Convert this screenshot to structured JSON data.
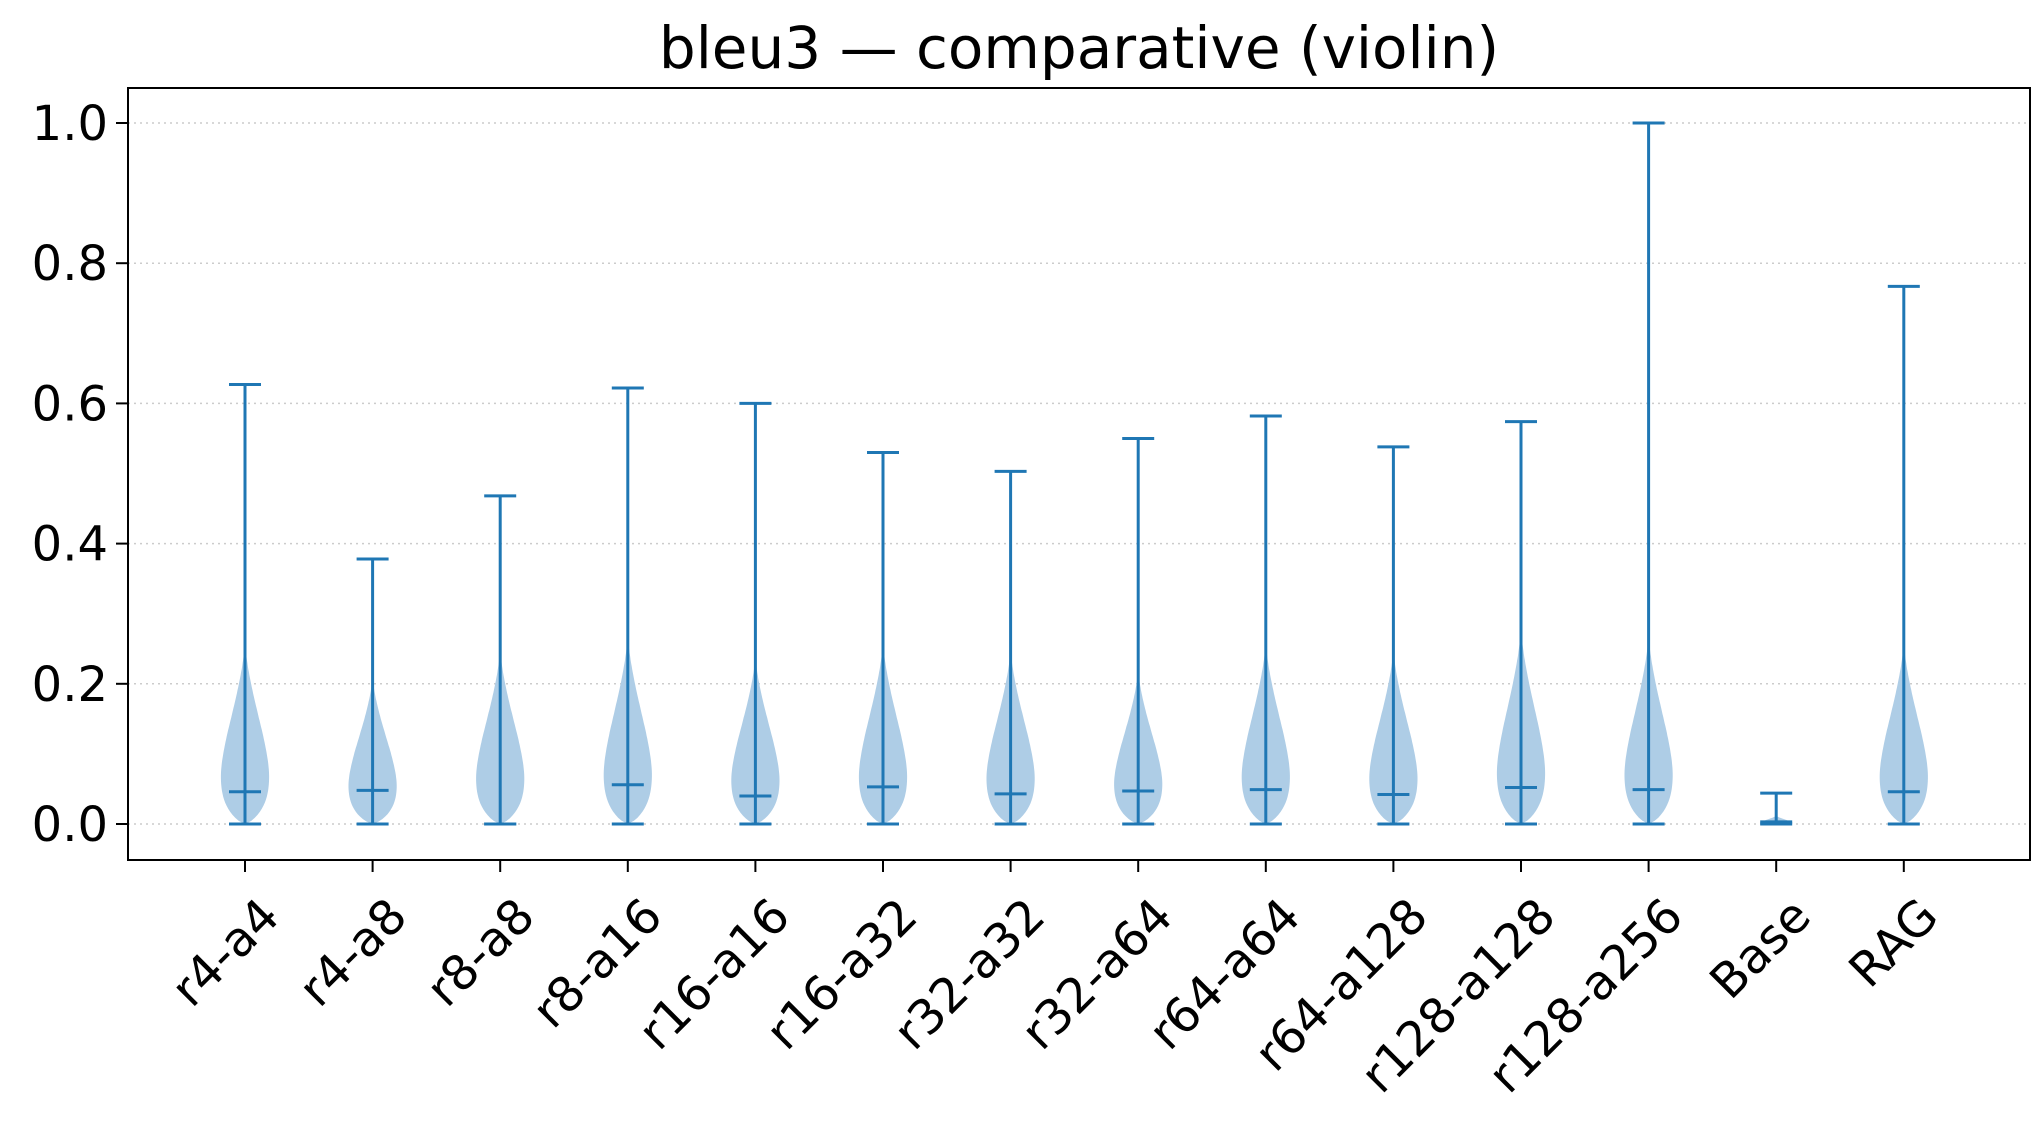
{
  "chart_data": {
    "type": "violin",
    "title": "bleu3 — comparative (violin)",
    "xlabel": "",
    "ylabel": "",
    "ylim": [
      -0.05,
      1.05
    ],
    "yticks": [
      0.0,
      0.2,
      0.4,
      0.6,
      0.8,
      1.0
    ],
    "ytick_labels": [
      "0.0",
      "0.2",
      "0.4",
      "0.6",
      "0.8",
      "1.0"
    ],
    "grid": "horizontal dotted",
    "colors": {
      "body": "#aecde6",
      "lines": "#1f77b4",
      "grid": "#cccccc"
    },
    "categories": [
      "r4-a4",
      "r4-a8",
      "r8-a8",
      "r8-a16",
      "r16-a16",
      "r16-a32",
      "r32-a32",
      "r32-a64",
      "r64-a64",
      "r64-a128",
      "r128-a128",
      "r128-a256",
      "Base",
      "RAG"
    ],
    "series": [
      {
        "category": "r4-a4",
        "min": 0.0,
        "max": 0.627,
        "median": 0.046,
        "density_top": 0.26,
        "max_halfwidth": 0.45
      },
      {
        "category": "r4-a8",
        "min": 0.0,
        "max": 0.378,
        "median": 0.048,
        "density_top": 0.21,
        "max_halfwidth": 0.45
      },
      {
        "category": "r8-a8",
        "min": 0.0,
        "max": 0.468,
        "median": 0.0,
        "density_top": 0.25,
        "max_halfwidth": 0.45
      },
      {
        "category": "r8-a16",
        "min": 0.0,
        "max": 0.622,
        "median": 0.056,
        "density_top": 0.27,
        "max_halfwidth": 0.45
      },
      {
        "category": "r16-a16",
        "min": 0.0,
        "max": 0.6,
        "median": 0.04,
        "density_top": 0.24,
        "max_halfwidth": 0.45
      },
      {
        "category": "r16-a32",
        "min": 0.0,
        "max": 0.53,
        "median": 0.053,
        "density_top": 0.26,
        "max_halfwidth": 0.45
      },
      {
        "category": "r32-a32",
        "min": 0.0,
        "max": 0.503,
        "median": 0.043,
        "density_top": 0.25,
        "max_halfwidth": 0.45
      },
      {
        "category": "r32-a64",
        "min": 0.0,
        "max": 0.55,
        "median": 0.047,
        "density_top": 0.22,
        "max_halfwidth": 0.45
      },
      {
        "category": "r64-a64",
        "min": 0.0,
        "max": 0.582,
        "median": 0.049,
        "density_top": 0.26,
        "max_halfwidth": 0.45
      },
      {
        "category": "r64-a128",
        "min": 0.0,
        "max": 0.538,
        "median": 0.042,
        "density_top": 0.25,
        "max_halfwidth": 0.45
      },
      {
        "category": "r128-a128",
        "min": 0.0,
        "max": 0.574,
        "median": 0.052,
        "density_top": 0.28,
        "max_halfwidth": 0.45
      },
      {
        "category": "r128-a256",
        "min": 0.0,
        "max": 1.0,
        "median": 0.049,
        "density_top": 0.27,
        "max_halfwidth": 0.45
      },
      {
        "category": "Base",
        "min": 0.0,
        "max": 0.044,
        "median": 0.003,
        "density_top": 0.012,
        "max_halfwidth": 0.25
      },
      {
        "category": "RAG",
        "min": 0.0,
        "max": 0.767,
        "median": 0.046,
        "density_top": 0.26,
        "max_halfwidth": 0.45
      }
    ]
  }
}
